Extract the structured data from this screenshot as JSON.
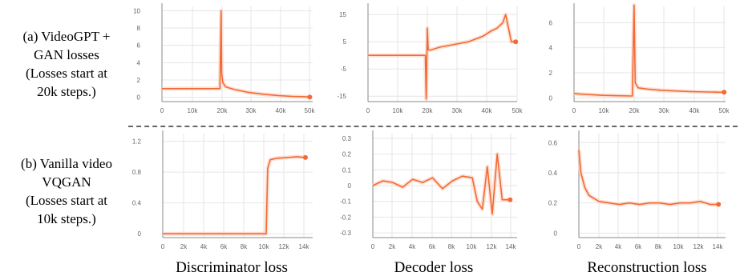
{
  "row_labels": [
    {
      "lines": [
        "(a) VideoGPT +",
        "GAN losses",
        "(Losses start at",
        "20k steps.)"
      ]
    },
    {
      "lines": [
        "(b) Vanilla video",
        "VQGAN",
        "(Losses start at",
        "10k steps.)"
      ]
    }
  ],
  "column_labels": [
    "Discriminator loss",
    "Decoder loss",
    "Reconstruction loss"
  ],
  "colors": {
    "line": "#f26a35",
    "band": "#fcd3c2",
    "axis": "#888888",
    "grid": "#e6e6e6",
    "separator": "#666666"
  },
  "chart_data": [
    {
      "type": "line",
      "row": "a",
      "column": "Discriminator loss",
      "x_ticks": [
        "0",
        "10k",
        "20k",
        "30k",
        "40k",
        "50k"
      ],
      "y_ticks": [
        "0",
        "2",
        "4",
        "6",
        "8",
        "10"
      ],
      "xlim": [
        0,
        52000
      ],
      "ylim": [
        -0.5,
        10.5
      ],
      "grid": true,
      "series": [
        {
          "x": [
            0,
            20000,
            20400,
            20600,
            21000,
            22000,
            25000,
            30000,
            35000,
            40000,
            45000,
            50000,
            51000
          ],
          "y": [
            1.0,
            1.0,
            10.0,
            2.8,
            1.7,
            1.2,
            0.9,
            0.55,
            0.35,
            0.2,
            0.1,
            0.05,
            0.02
          ]
        }
      ]
    },
    {
      "type": "line",
      "row": "a",
      "column": "Decoder loss",
      "x_ticks": [
        "0",
        "10k",
        "20k",
        "30k",
        "40k",
        "50k"
      ],
      "y_ticks": [
        "15",
        "5",
        "-5",
        "-15"
      ],
      "xlim": [
        0,
        52000
      ],
      "ylim": [
        -17,
        18
      ],
      "grid": true,
      "series": [
        {
          "x": [
            0,
            20000,
            20300,
            20700,
            21000,
            22000,
            25000,
            30000,
            35000,
            40000,
            43000,
            45000,
            47000,
            48000,
            50000,
            51500
          ],
          "y": [
            0,
            0,
            -16,
            10,
            2,
            2,
            3,
            4,
            5,
            7,
            9,
            10,
            12,
            15,
            5,
            5
          ]
        }
      ]
    },
    {
      "type": "line",
      "row": "a",
      "column": "Reconstruction loss",
      "x_ticks": [
        "0",
        "10k",
        "20k",
        "30k",
        "40k",
        "50k"
      ],
      "y_ticks": [
        "0",
        "2",
        "4",
        "6"
      ],
      "xlim": [
        0,
        52000
      ],
      "ylim": [
        -0.3,
        7.3
      ],
      "grid": true,
      "series": [
        {
          "x": [
            0,
            2000,
            10000,
            20000,
            20600,
            21000,
            22000,
            25000,
            30000,
            40000,
            50000,
            51500
          ],
          "y": [
            0.35,
            0.3,
            0.2,
            0.15,
            7.4,
            1.2,
            0.8,
            0.7,
            0.6,
            0.5,
            0.45,
            0.45
          ]
        }
      ]
    },
    {
      "type": "line",
      "row": "b",
      "column": "Discriminator loss",
      "x_ticks": [
        "0",
        "2k",
        "4k",
        "6k",
        "8k",
        "10k",
        "12k",
        "14k"
      ],
      "y_ticks": [
        "0",
        "0.4",
        "0.8",
        "1.2"
      ],
      "xlim": [
        0,
        14500
      ],
      "ylim": [
        -0.05,
        1.3
      ],
      "grid": true,
      "series": [
        {
          "x": [
            0,
            10000,
            10150,
            10400,
            11000,
            12000,
            13000,
            13800
          ],
          "y": [
            0,
            0,
            0.85,
            0.96,
            0.98,
            0.99,
            1.0,
            0.99
          ]
        }
      ]
    },
    {
      "type": "line",
      "row": "b",
      "column": "Decoder loss",
      "x_ticks": [
        "0",
        "2k",
        "4k",
        "6k",
        "8k",
        "10k",
        "12k",
        "14k"
      ],
      "y_ticks": [
        "0.3",
        "0.2",
        "0.1",
        "0",
        "-0.1",
        "-0.2",
        "-0.3"
      ],
      "xlim": [
        0,
        14500
      ],
      "ylim": [
        -0.33,
        0.33
      ],
      "grid": true,
      "series": [
        {
          "x": [
            0,
            1000,
            2000,
            3000,
            4000,
            5000,
            6000,
            7000,
            8000,
            9000,
            10000,
            10500,
            11000,
            11500,
            12000,
            12500,
            13000,
            13800
          ],
          "y": [
            0,
            0.03,
            0.02,
            -0.01,
            0.04,
            0.02,
            0.05,
            -0.02,
            0.03,
            0.06,
            0.05,
            -0.1,
            -0.15,
            0.12,
            -0.18,
            0.2,
            -0.09,
            -0.09
          ]
        }
      ]
    },
    {
      "type": "line",
      "row": "b",
      "column": "Reconstruction loss",
      "x_ticks": [
        "0",
        "2k",
        "4k",
        "6k",
        "8k",
        "10k",
        "12k",
        "14k"
      ],
      "y_ticks": [
        "0",
        "0.2",
        "0.4",
        "0.6"
      ],
      "xlim": [
        0,
        14500
      ],
      "ylim": [
        -0.03,
        0.66
      ],
      "grid": true,
      "series": [
        {
          "x": [
            0,
            200,
            600,
            1000,
            2000,
            3000,
            4000,
            5000,
            6000,
            7000,
            8000,
            9000,
            10000,
            11000,
            12000,
            13000,
            13800
          ],
          "y": [
            0.55,
            0.4,
            0.3,
            0.25,
            0.21,
            0.2,
            0.19,
            0.2,
            0.19,
            0.2,
            0.2,
            0.19,
            0.2,
            0.2,
            0.21,
            0.19,
            0.19
          ]
        }
      ]
    }
  ]
}
